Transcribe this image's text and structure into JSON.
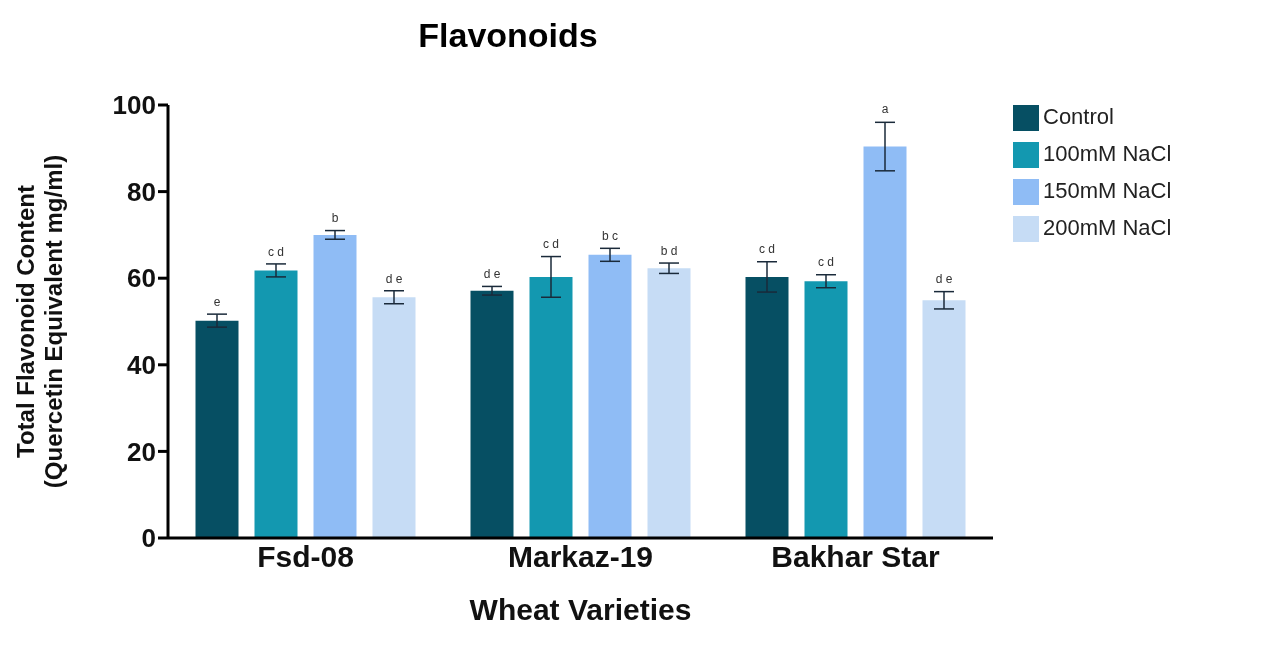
{
  "chart_data": {
    "type": "bar",
    "title": "Flavonoids",
    "xlabel": "Wheat Varieties",
    "ylabel": "Total Flavonoid Content\n(Quercetin Equivalent mg/ml)",
    "categories": [
      "Fsd-08",
      "Markaz-19",
      "Bakhar Star"
    ],
    "series": [
      {
        "name": "Control",
        "color": "#064f63",
        "values": [
          50.2,
          57.1,
          60.3
        ],
        "errors": [
          1.5,
          1,
          3.5
        ],
        "value_labels": [
          "e",
          "d e",
          "c d"
        ]
      },
      {
        "name": "100mM NaCl",
        "color": "#1398b0",
        "values": [
          61.8,
          60.3,
          59.3
        ],
        "errors": [
          1.5,
          4.7,
          1.5
        ],
        "value_labels": [
          "c d",
          "c d",
          "c d"
        ]
      },
      {
        "name": "150mM NaCl",
        "color": "#8fbcf5",
        "values": [
          70,
          65.4,
          90.4
        ],
        "errors": [
          1,
          1.5,
          5.6
        ],
        "value_labels": [
          "b",
          "b c",
          "a"
        ]
      },
      {
        "name": "200mM NaCl",
        "color": "#c6dcf5",
        "values": [
          55.6,
          62.3,
          54.9
        ],
        "errors": [
          1.5,
          1.2,
          2
        ],
        "value_labels": [
          "d e",
          "b d",
          "d e"
        ]
      }
    ],
    "ylim": [
      0,
      100
    ],
    "yticks": [
      0,
      20,
      40,
      60,
      80,
      100
    ],
    "grid": false,
    "legend": "right"
  }
}
